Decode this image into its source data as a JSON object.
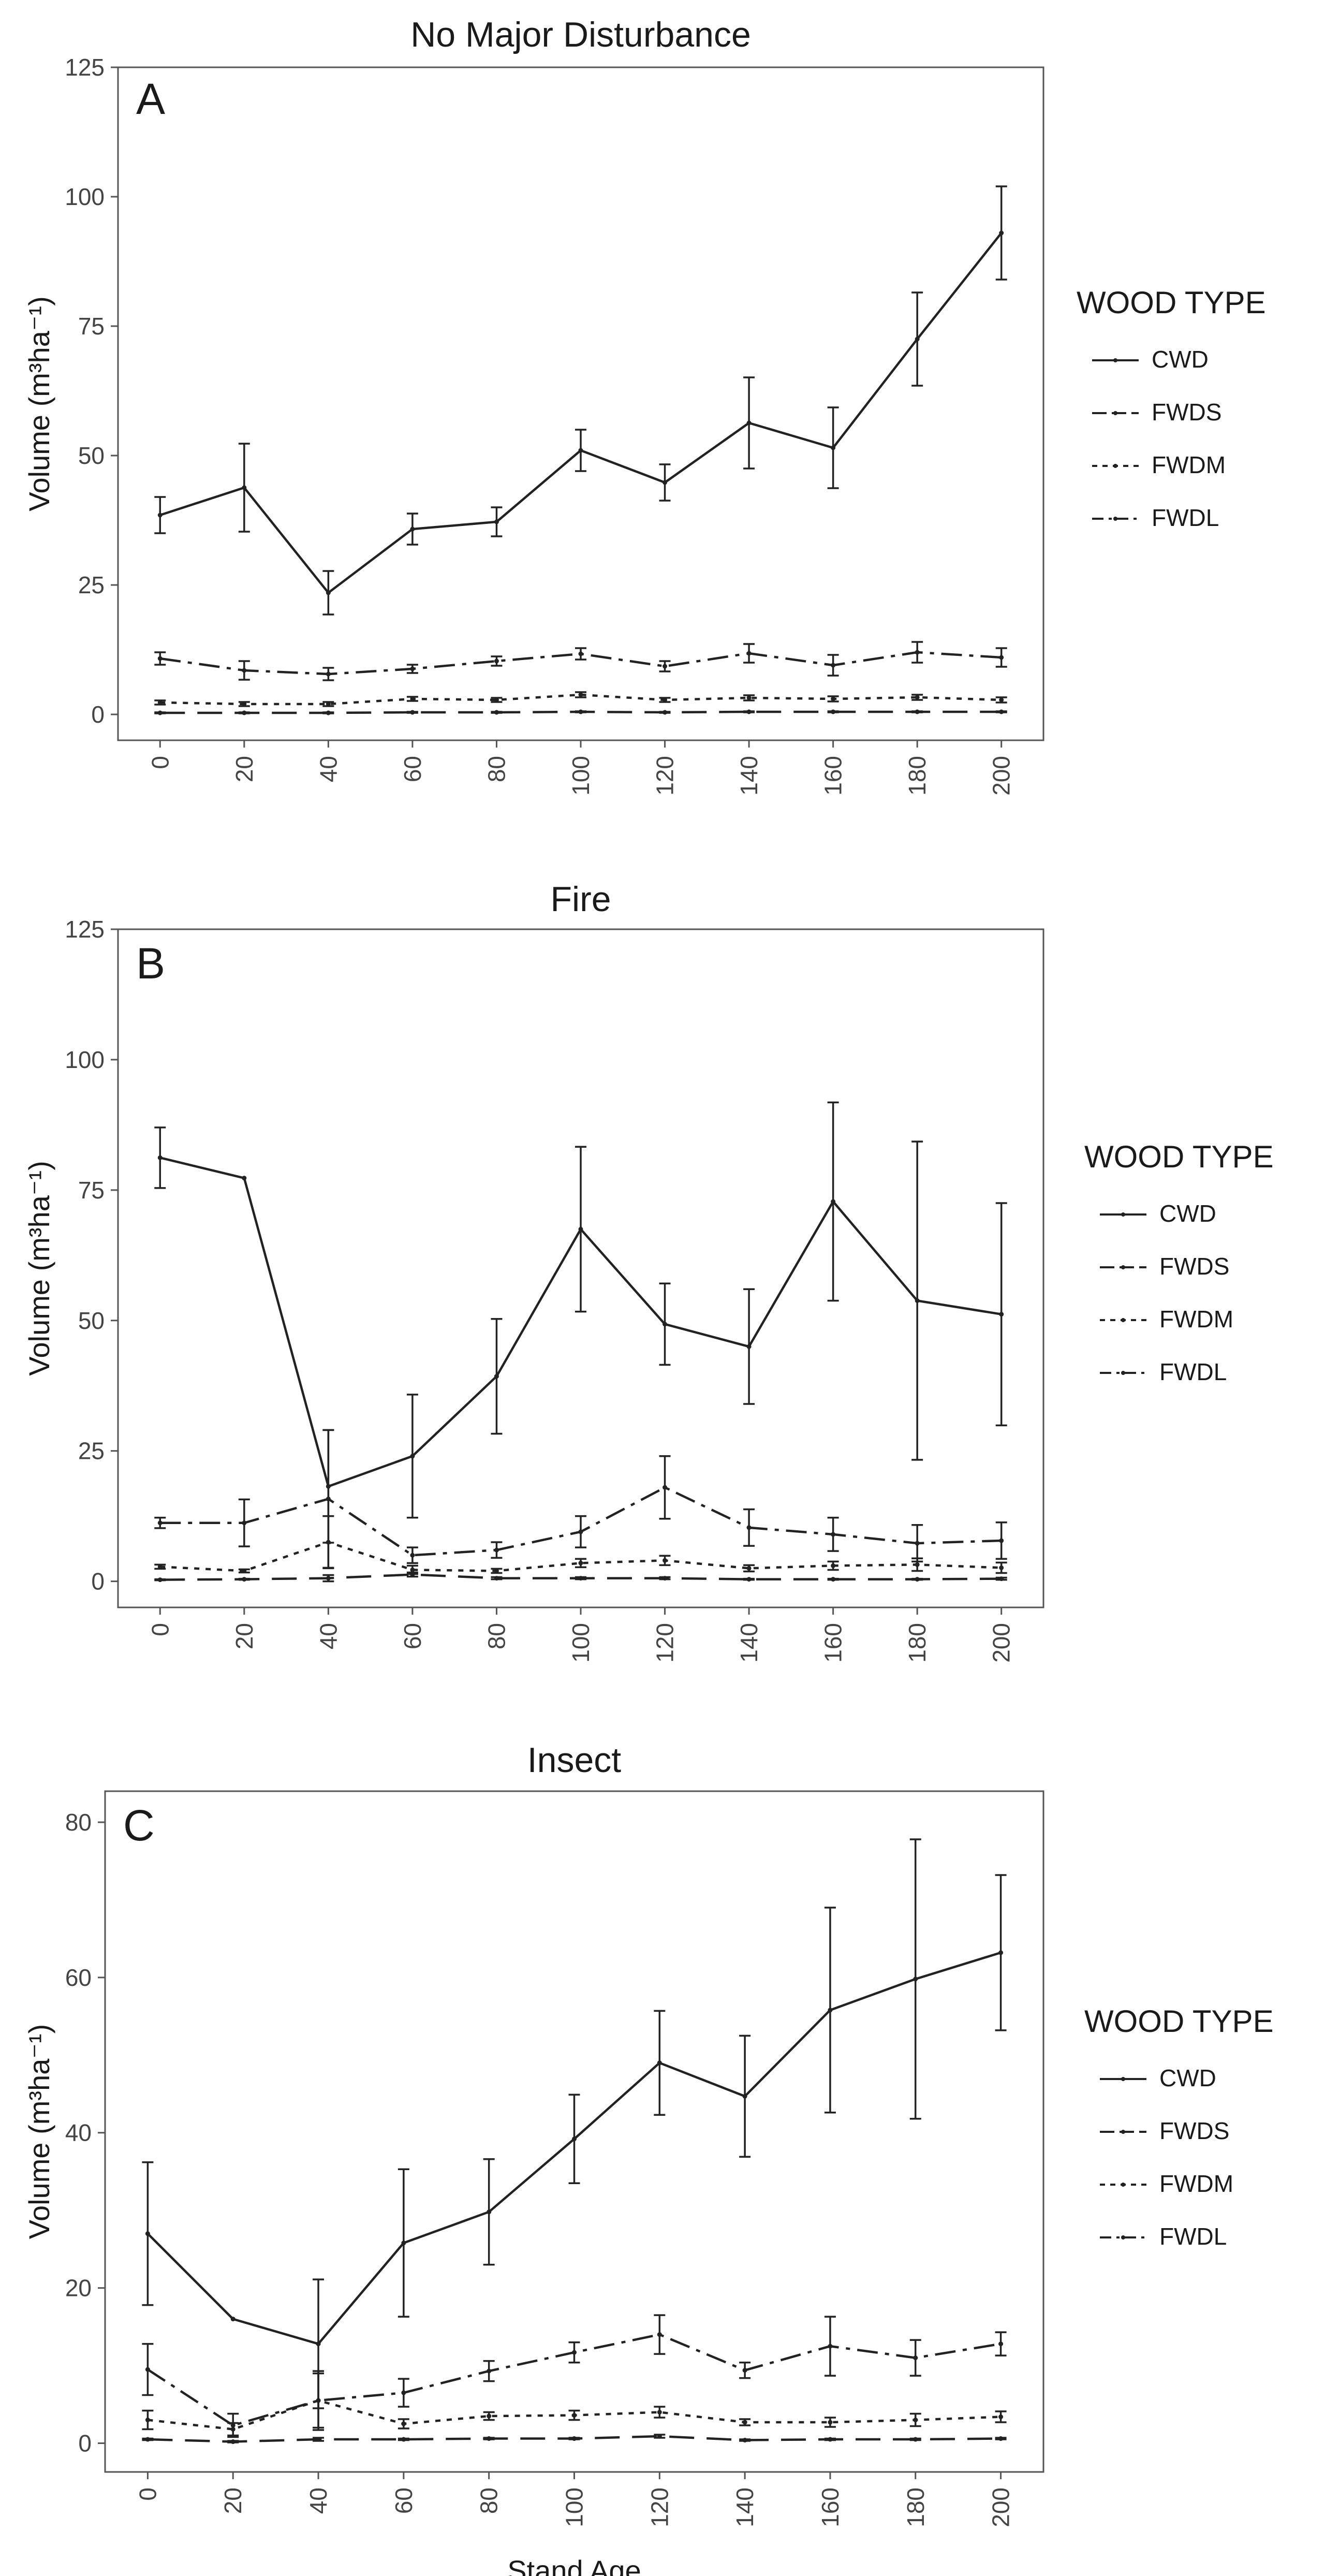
{
  "figure": {
    "x_axis_label": "Stand Age",
    "y_axis_label": "Volume (m³ha⁻¹)",
    "legend_title": "WOOD TYPE"
  },
  "chart_data": [
    {
      "type": "line",
      "panel": "A",
      "title": "No Major Disturbance",
      "xlabel": "",
      "ylabel": "Volume (m³ha⁻¹)",
      "x": [
        0,
        20,
        40,
        60,
        80,
        100,
        120,
        140,
        160,
        180,
        200
      ],
      "xlim": [
        -10,
        210
      ],
      "ylim": [
        -5,
        125
      ],
      "yticks": [
        0,
        25,
        50,
        75,
        100,
        125
      ],
      "legend_title": "WOOD TYPE",
      "series": [
        {
          "name": "CWD",
          "style": "solid",
          "values": [
            38.5,
            43.8,
            23.5,
            35.8,
            37.2,
            51.0,
            44.8,
            56.3,
            51.5,
            72.5,
            93.0
          ],
          "errors": [
            3.5,
            8.5,
            4.2,
            3.0,
            2.8,
            4.0,
            3.5,
            8.8,
            7.8,
            9.0,
            9.0
          ]
        },
        {
          "name": "FWDS",
          "style": "longdash",
          "values": [
            0.3,
            0.3,
            0.3,
            0.4,
            0.4,
            0.5,
            0.4,
            0.5,
            0.5,
            0.5,
            0.5
          ],
          "errors": [
            0.1,
            0.1,
            0.1,
            0.1,
            0.1,
            0.1,
            0.1,
            0.1,
            0.1,
            0.1,
            0.1
          ]
        },
        {
          "name": "FWDM",
          "style": "dotted",
          "values": [
            2.3,
            2.0,
            2.0,
            3.0,
            2.8,
            3.8,
            2.8,
            3.2,
            3.0,
            3.3,
            2.8
          ],
          "errors": [
            0.4,
            0.4,
            0.4,
            0.4,
            0.4,
            0.5,
            0.4,
            0.5,
            0.5,
            0.5,
            0.5
          ]
        },
        {
          "name": "FWDL",
          "style": "dashdot",
          "values": [
            10.8,
            8.5,
            7.8,
            8.8,
            10.3,
            11.7,
            9.3,
            11.8,
            9.5,
            12.0,
            11.0
          ],
          "errors": [
            1.2,
            1.8,
            1.2,
            0.8,
            0.9,
            1.1,
            1.0,
            1.8,
            2.0,
            2.0,
            1.8
          ]
        }
      ]
    },
    {
      "type": "line",
      "panel": "B",
      "title": "Fire",
      "xlabel": "",
      "ylabel": "Volume (m³ha⁻¹)",
      "x": [
        0,
        20,
        40,
        60,
        80,
        100,
        120,
        140,
        160,
        180,
        200
      ],
      "xlim": [
        -10,
        210
      ],
      "ylim": [
        -5,
        125
      ],
      "yticks": [
        0,
        25,
        50,
        75,
        100,
        125
      ],
      "legend_title": "WOOD TYPE",
      "series": [
        {
          "name": "CWD",
          "style": "solid",
          "values": [
            81.2,
            77.3,
            18.2,
            24.0,
            39.3,
            67.5,
            49.3,
            45.0,
            72.8,
            53.8,
            51.2
          ],
          "errors": [
            5.8,
            0,
            10.8,
            11.8,
            11.0,
            15.8,
            7.8,
            11.0,
            19.0,
            30.5,
            21.3
          ]
        },
        {
          "name": "FWDS",
          "style": "longdash",
          "values": [
            0.3,
            0.4,
            0.6,
            1.3,
            0.6,
            0.6,
            0.6,
            0.4,
            0.4,
            0.4,
            0.5
          ],
          "errors": [
            0.1,
            0.1,
            0.6,
            0.4,
            0.2,
            0.2,
            0.2,
            0.1,
            0.1,
            0.1,
            0.2
          ]
        },
        {
          "name": "FWDM",
          "style": "dotted",
          "values": [
            2.8,
            2.0,
            7.5,
            2.2,
            2.0,
            3.5,
            4.0,
            2.5,
            3.0,
            3.2,
            2.6
          ],
          "errors": [
            0.4,
            0.3,
            5.0,
            0.8,
            0.4,
            0.8,
            0.9,
            0.6,
            0.8,
            1.2,
            1.0
          ]
        },
        {
          "name": "FWDL",
          "style": "dashdot",
          "values": [
            11.2,
            11.2,
            15.8,
            5.0,
            6.0,
            9.5,
            18.0,
            10.3,
            9.0,
            7.3,
            7.8
          ],
          "errors": [
            1.0,
            4.5,
            13.2,
            1.5,
            1.5,
            3.0,
            6.0,
            3.5,
            3.2,
            3.5,
            3.5
          ]
        }
      ]
    },
    {
      "type": "line",
      "panel": "C",
      "title": "Insect",
      "xlabel": "Stand Age",
      "ylabel": "Volume (m³ha⁻¹)",
      "x": [
        0,
        20,
        40,
        60,
        80,
        100,
        120,
        140,
        160,
        180,
        200
      ],
      "xlim": [
        -10,
        210
      ],
      "ylim": [
        -3.7,
        84
      ],
      "yticks": [
        0,
        20,
        40,
        60,
        80
      ],
      "legend_title": "WOOD TYPE",
      "series": [
        {
          "name": "CWD",
          "style": "solid",
          "values": [
            27.0,
            16.0,
            12.8,
            25.8,
            29.8,
            39.2,
            49.0,
            44.7,
            55.8,
            59.8,
            63.2
          ],
          "errors": [
            9.2,
            0,
            8.3,
            9.5,
            6.8,
            5.7,
            6.7,
            7.8,
            13.2,
            18.0,
            10.0
          ]
        },
        {
          "name": "FWDS",
          "style": "longdash",
          "values": [
            0.5,
            0.2,
            0.5,
            0.5,
            0.6,
            0.6,
            0.9,
            0.4,
            0.5,
            0.5,
            0.6
          ],
          "errors": [
            0.1,
            0.1,
            0.2,
            0.1,
            0.1,
            0.1,
            0.2,
            0.1,
            0.1,
            0.1,
            0.1
          ]
        },
        {
          "name": "FWDM",
          "style": "dotted",
          "values": [
            3.0,
            1.8,
            5.5,
            2.5,
            3.5,
            3.6,
            4.0,
            2.7,
            2.7,
            3.0,
            3.4
          ],
          "errors": [
            1.2,
            0.8,
            3.5,
            0.6,
            0.5,
            0.6,
            0.7,
            0.4,
            0.6,
            0.8,
            0.7
          ]
        },
        {
          "name": "FWDL",
          "style": "dashdot",
          "values": [
            9.5,
            2.3,
            5.5,
            6.5,
            9.3,
            11.7,
            14.0,
            9.4,
            12.5,
            11.0,
            12.8
          ],
          "errors": [
            3.3,
            1.5,
            3.8,
            1.8,
            1.3,
            1.3,
            2.5,
            1.0,
            3.8,
            2.3,
            1.5
          ]
        }
      ]
    }
  ]
}
